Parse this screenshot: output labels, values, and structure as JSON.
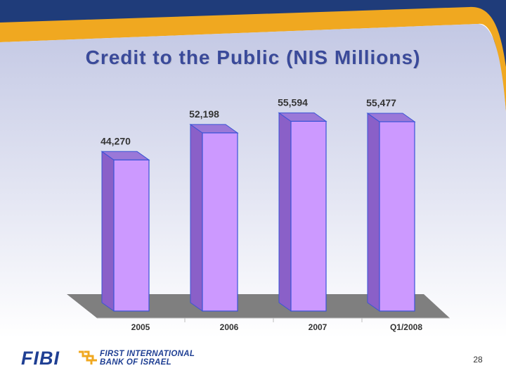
{
  "slide": {
    "title": "Credit to the Public (NIS Millions)",
    "page_number": "28",
    "logo": {
      "wordmark": "FIBI",
      "line1": "FIRST INTERNATIONAL",
      "line2": "BANK OF ISRAEL"
    }
  },
  "colors": {
    "bar_front": "#cc99ff",
    "bar_side": "#8a60c8",
    "bar_top": "#9a78d8",
    "bar_edge": "#3a54d6",
    "floor": "#7f7f7f",
    "title": "#3a4a9a",
    "frame_dark": "#1f3c7a",
    "frame_accent": "#f0a820"
  },
  "chart_data": {
    "type": "bar",
    "categories": [
      "2005",
      "2006",
      "2007",
      "Q1/2008"
    ],
    "values": [
      44270,
      52198,
      55594,
      55477
    ],
    "data_labels": [
      "44,270",
      "52,198",
      "55,594",
      "55,477"
    ],
    "title": "",
    "xlabel": "",
    "ylabel": "",
    "ylim": [
      0,
      56500
    ],
    "grid": false,
    "legend": "none",
    "three_d": true
  }
}
